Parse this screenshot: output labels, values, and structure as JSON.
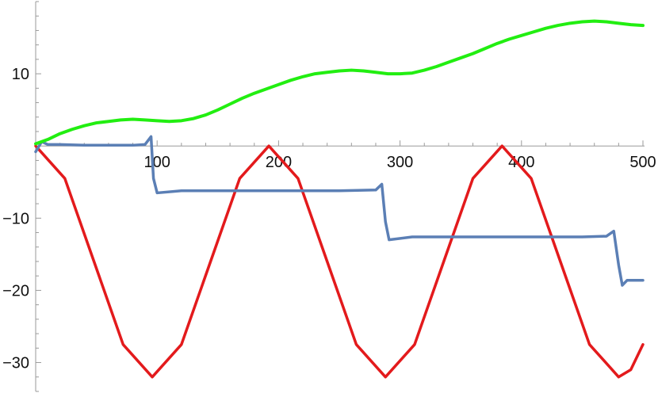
{
  "chart_data": {
    "type": "line",
    "title": "",
    "xlabel": "",
    "ylabel": "",
    "xlim": [
      0,
      500
    ],
    "ylim": [
      -34,
      20
    ],
    "grid": false,
    "legend": "none",
    "x_ticks": [
      {
        "value": 100,
        "label": "100"
      },
      {
        "value": 200,
        "label": "200"
      },
      {
        "value": 300,
        "label": "300"
      },
      {
        "value": 400,
        "label": "400"
      },
      {
        "value": 500,
        "label": "500"
      }
    ],
    "y_ticks": [
      {
        "value": 10,
        "label": "10"
      },
      {
        "value": -10,
        "label": "−10"
      },
      {
        "value": -20,
        "label": "−20"
      },
      {
        "value": -30,
        "label": "−30"
      }
    ],
    "x_minor_step": 20,
    "y_minor_step": 2,
    "series": [
      {
        "color": "#e31a1c",
        "points": [
          [
            0,
            0
          ],
          [
            24,
            -4.5
          ],
          [
            48,
            -16
          ],
          [
            72,
            -27.5
          ],
          [
            96,
            -32
          ],
          [
            120,
            -27.5
          ],
          [
            144,
            -16
          ],
          [
            168,
            -4.5
          ],
          [
            192,
            0
          ],
          [
            216,
            -4.5
          ],
          [
            240,
            -16
          ],
          [
            264,
            -27.5
          ],
          [
            288,
            -32
          ],
          [
            312,
            -27.5
          ],
          [
            336,
            -16
          ],
          [
            360,
            -4.5
          ],
          [
            384,
            0
          ],
          [
            408,
            -4.5
          ],
          [
            432,
            -16
          ],
          [
            456,
            -27.5
          ],
          [
            480,
            -32
          ],
          [
            490,
            -31
          ],
          [
            500,
            -27.5
          ]
        ]
      },
      {
        "color": "#5b7fb5",
        "points": [
          [
            0,
            -0.8
          ],
          [
            5,
            0.6
          ],
          [
            10,
            0.2
          ],
          [
            20,
            0.2
          ],
          [
            40,
            0.1
          ],
          [
            60,
            0.1
          ],
          [
            80,
            0.1
          ],
          [
            90,
            0.2
          ],
          [
            95,
            1.3
          ],
          [
            97,
            -4.5
          ],
          [
            100,
            -6.5
          ],
          [
            120,
            -6.2
          ],
          [
            150,
            -6.2
          ],
          [
            200,
            -6.2
          ],
          [
            250,
            -6.2
          ],
          [
            280,
            -6.1
          ],
          [
            285,
            -5.3
          ],
          [
            288,
            -10.5
          ],
          [
            291,
            -13.0
          ],
          [
            310,
            -12.6
          ],
          [
            350,
            -12.6
          ],
          [
            400,
            -12.6
          ],
          [
            450,
            -12.6
          ],
          [
            470,
            -12.5
          ],
          [
            476,
            -11.8
          ],
          [
            480,
            -16.5
          ],
          [
            483,
            -19.3
          ],
          [
            487,
            -18.6
          ],
          [
            500,
            -18.6
          ]
        ]
      },
      {
        "color": "#22ee11",
        "points": [
          [
            0,
            0.3
          ],
          [
            10,
            0.9
          ],
          [
            20,
            1.7
          ],
          [
            30,
            2.3
          ],
          [
            40,
            2.8
          ],
          [
            50,
            3.2
          ],
          [
            60,
            3.4
          ],
          [
            70,
            3.6
          ],
          [
            80,
            3.7
          ],
          [
            90,
            3.6
          ],
          [
            100,
            3.5
          ],
          [
            110,
            3.4
          ],
          [
            120,
            3.5
          ],
          [
            130,
            3.8
          ],
          [
            140,
            4.3
          ],
          [
            150,
            5.0
          ],
          [
            160,
            5.8
          ],
          [
            170,
            6.6
          ],
          [
            180,
            7.3
          ],
          [
            190,
            7.9
          ],
          [
            200,
            8.5
          ],
          [
            210,
            9.1
          ],
          [
            220,
            9.6
          ],
          [
            230,
            10.0
          ],
          [
            240,
            10.2
          ],
          [
            250,
            10.4
          ],
          [
            260,
            10.5
          ],
          [
            270,
            10.4
          ],
          [
            280,
            10.2
          ],
          [
            290,
            10.0
          ],
          [
            300,
            10.0
          ],
          [
            310,
            10.1
          ],
          [
            320,
            10.5
          ],
          [
            330,
            11.0
          ],
          [
            340,
            11.6
          ],
          [
            350,
            12.2
          ],
          [
            360,
            12.8
          ],
          [
            370,
            13.5
          ],
          [
            380,
            14.2
          ],
          [
            390,
            14.8
          ],
          [
            400,
            15.3
          ],
          [
            410,
            15.8
          ],
          [
            420,
            16.3
          ],
          [
            430,
            16.7
          ],
          [
            440,
            17.0
          ],
          [
            450,
            17.2
          ],
          [
            460,
            17.3
          ],
          [
            470,
            17.2
          ],
          [
            480,
            17.0
          ],
          [
            490,
            16.8
          ],
          [
            500,
            16.7
          ]
        ]
      }
    ]
  }
}
